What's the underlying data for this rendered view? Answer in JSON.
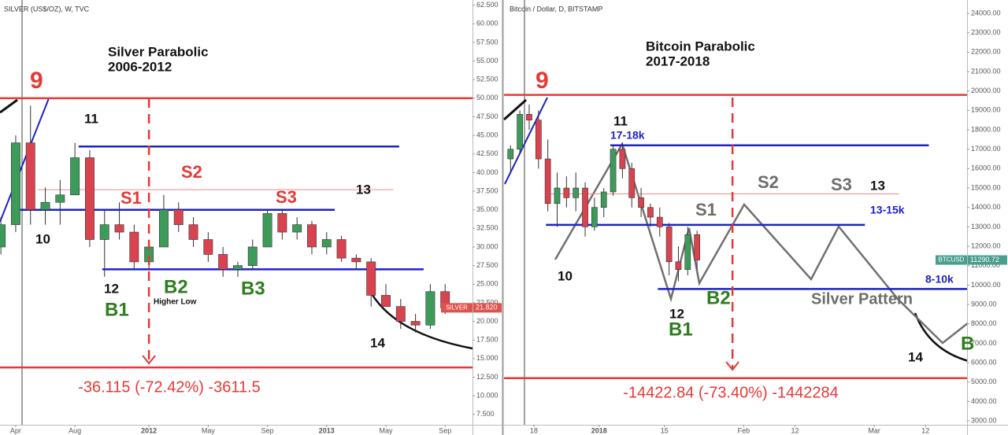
{
  "chart_data": [
    {
      "type": "candlestick",
      "header": "SILVER (US$/OZ), W, TVC",
      "title": "Silver Parabolic",
      "subtitle": "2006-2012",
      "x": [
        2,
        3,
        4,
        5,
        6,
        7,
        8,
        9,
        10,
        11,
        12,
        13,
        14,
        15,
        16,
        17,
        18,
        19,
        20,
        21,
        22,
        23,
        24,
        25,
        26,
        27,
        28,
        29,
        30,
        31,
        32
      ],
      "open": [
        30,
        33,
        44,
        35,
        36,
        37,
        42,
        31,
        33,
        32,
        28,
        30,
        35,
        33,
        31,
        29,
        27,
        27.5,
        30,
        34.5,
        32,
        33,
        30,
        31,
        28.5,
        28,
        23.5,
        22,
        20,
        19.5,
        24
      ],
      "high": [
        34,
        45,
        49,
        38,
        39,
        44,
        43,
        35,
        36,
        33,
        31,
        37,
        36,
        34,
        32,
        30,
        28,
        31,
        35,
        35,
        34,
        33.5,
        32,
        31.5,
        29,
        28.5,
        25,
        23,
        21,
        25,
        25
      ],
      "low": [
        29,
        32,
        33,
        33,
        33,
        37,
        30,
        26,
        31,
        27,
        27,
        30,
        32,
        30,
        28,
        26,
        26,
        27,
        30,
        31,
        31,
        29,
        29,
        28,
        27,
        22,
        22,
        19,
        18.5,
        19,
        21
      ],
      "close": [
        33,
        44,
        35,
        36,
        37,
        42,
        31,
        33,
        32,
        28,
        30,
        35,
        33,
        31,
        29,
        27,
        27.5,
        30,
        34.5,
        32,
        33,
        30,
        31,
        28.5,
        28,
        23.5,
        22,
        20,
        19.5,
        24,
        21.8
      ],
      "up_color": "#3d9b5a",
      "down_color": "#d9434f",
      "xlim": [
        1.94,
        33.85
      ],
      "ylim": [
        6.1,
        63.2
      ],
      "xticks": [
        {
          "value": 3,
          "label": "Apr"
        },
        {
          "value": 7,
          "label": "Aug"
        },
        {
          "value": 12,
          "label": "2012"
        },
        {
          "value": 16,
          "label": "May"
        },
        {
          "value": 20,
          "label": "Sep"
        },
        {
          "value": 24,
          "label": "2013"
        },
        {
          "value": 28,
          "label": "May"
        },
        {
          "value": 32,
          "label": "Sep"
        }
      ],
      "yticks": [
        {
          "value": 7.5,
          "label": "7.500"
        },
        {
          "value": 10,
          "label": "10.000"
        },
        {
          "value": 12.5,
          "label": "12.500"
        },
        {
          "value": 15,
          "label": "15.000"
        },
        {
          "value": 17.5,
          "label": "17.500"
        },
        {
          "value": 20,
          "label": "20.000"
        },
        {
          "value": 22.5,
          "label": "22.500"
        },
        {
          "value": 25,
          "label": "25.000"
        },
        {
          "value": 27.5,
          "label": "27.500"
        },
        {
          "value": 30,
          "label": "30.000"
        },
        {
          "value": 32.5,
          "label": "32.500"
        },
        {
          "value": 35,
          "label": "35.000"
        },
        {
          "value": 37.5,
          "label": "37.500"
        },
        {
          "value": 40,
          "label": "40.000"
        },
        {
          "value": 42.5,
          "label": "42.500"
        },
        {
          "value": 45,
          "label": "45.000"
        },
        {
          "value": 47.5,
          "label": "47.500"
        },
        {
          "value": 50,
          "label": "50.000"
        },
        {
          "value": 52.5,
          "label": "52.500"
        },
        {
          "value": 55,
          "label": "55.000"
        },
        {
          "value": 57.5,
          "label": "57.500"
        },
        {
          "value": 60,
          "label": "60.000"
        },
        {
          "value": 62.5,
          "label": "62.500"
        }
      ],
      "levels": [
        {
          "value": 50,
          "color": "#e53935"
        },
        {
          "value": 43.5,
          "color": "#1e22c8",
          "from": 7.25,
          "to": 28.9
        },
        {
          "value": 37.7,
          "color": "#f08a8a",
          "from": 4.5,
          "to": 28.5,
          "thin": true
        },
        {
          "value": 35,
          "color": "#1e22c8",
          "from": 3,
          "to": 24.55
        },
        {
          "value": 27,
          "color": "#1e22c8",
          "from": 8.85,
          "to": 30.55
        },
        {
          "value": 13.8,
          "color": "#e53935"
        }
      ],
      "vline": {
        "value": 12,
        "color": "#e53935"
      },
      "annotations": [
        {
          "text": "9",
          "color": "#e53935"
        },
        {
          "text": "11",
          "color": "#111"
        },
        {
          "text": "10",
          "color": "#111"
        },
        {
          "text": "12",
          "color": "#111"
        },
        {
          "text": "B1",
          "color": "#2e7d1e"
        },
        {
          "text": "S1",
          "color": "#e53935"
        },
        {
          "text": "S2",
          "color": "#e53935"
        },
        {
          "text": "B2",
          "color": "#2e7d1e"
        },
        {
          "text": "Higher Low",
          "color": "#111"
        },
        {
          "text": "S3",
          "color": "#e53935"
        },
        {
          "text": "B3",
          "color": "#2e7d1e"
        },
        {
          "text": "13",
          "color": "#111"
        },
        {
          "text": "14",
          "color": "#111"
        }
      ],
      "change_label": "-36.115 (-72.42%) -3611.5",
      "symbol": "SILVER",
      "last_price": {
        "value": 21.82,
        "label": "21.820"
      },
      "last_color": "#e0524d"
    },
    {
      "type": "candlestick",
      "header": "Bitcoin / Dollar, D, BITSTAMP",
      "title": "Bitcoin Parabolic",
      "subtitle": "2017-2018",
      "x": [
        12,
        14,
        16,
        18,
        20,
        22,
        24,
        26,
        28,
        30,
        32,
        34,
        36,
        38,
        40,
        42,
        44,
        46,
        48,
        50,
        52
      ],
      "open": [
        16500,
        17000,
        18800,
        18500,
        16500,
        14200,
        15000,
        14500,
        15000,
        13000,
        14000,
        14800,
        17000,
        16000,
        14500,
        14000,
        13500,
        13000,
        11200,
        10800,
        12600
      ],
      "high": [
        17200,
        19000,
        19300,
        19000,
        17500,
        15800,
        15600,
        15800,
        15300,
        14500,
        15000,
        17200,
        17300,
        16300,
        15000,
        14200,
        14000,
        13200,
        12000,
        13000,
        12800
      ],
      "low": [
        15800,
        16800,
        18000,
        16000,
        13800,
        13000,
        14000,
        13800,
        12500,
        12800,
        13500,
        14600,
        15500,
        14000,
        13500,
        13000,
        12500,
        10500,
        10200,
        10500,
        10800
      ],
      "close": [
        17000,
        18800,
        18500,
        16500,
        14200,
        15000,
        14500,
        15000,
        13000,
        14000,
        14800,
        17000,
        16000,
        14500,
        14000,
        13500,
        13000,
        11200,
        10800,
        12600,
        11290.72
      ],
      "up_color": "#3d9b5a",
      "down_color": "#d9434f",
      "xlim": [
        10.6,
        109.9
      ],
      "ylim": [
        2800,
        24690
      ],
      "xticks": [
        {
          "value": 17,
          "label": "18"
        },
        {
          "value": 31,
          "label": "2018"
        },
        {
          "value": 45,
          "label": "15"
        },
        {
          "value": 62,
          "label": "Feb"
        },
        {
          "value": 73,
          "label": "12"
        },
        {
          "value": 90,
          "label": "Mar"
        },
        {
          "value": 101,
          "label": "12"
        }
      ],
      "yticks": [
        {
          "value": 3000,
          "label": "3000.00"
        },
        {
          "value": 4000,
          "label": "4000.00"
        },
        {
          "value": 5000,
          "label": "5000.00"
        },
        {
          "value": 6000,
          "label": "6000.00"
        },
        {
          "value": 7000,
          "label": "7000.00"
        },
        {
          "value": 8000,
          "label": "8000.00"
        },
        {
          "value": 9000,
          "label": "9000.00"
        },
        {
          "value": 10000,
          "label": "10000.00"
        },
        {
          "value": 11000,
          "label": "11000.00"
        },
        {
          "value": 12000,
          "label": "12000.00"
        },
        {
          "value": 13000,
          "label": "13000.00"
        },
        {
          "value": 14000,
          "label": "14000.00"
        },
        {
          "value": 15000,
          "label": "15000.00"
        },
        {
          "value": 16000,
          "label": "16000.00"
        },
        {
          "value": 17000,
          "label": "17000.00"
        },
        {
          "value": 18000,
          "label": "18000.00"
        },
        {
          "value": 19000,
          "label": "19000.00"
        },
        {
          "value": 20000,
          "label": "20000.00"
        },
        {
          "value": 21000,
          "label": "21000.00"
        },
        {
          "value": 22000,
          "label": "22000.00"
        },
        {
          "value": 23000,
          "label": "23000.00"
        },
        {
          "value": 24000,
          "label": "24000.00"
        }
      ],
      "levels": [
        {
          "value": 19800,
          "color": "#e53935"
        },
        {
          "value": 17200,
          "color": "#1e22c8",
          "from": 33.4,
          "to": 101.7
        },
        {
          "value": 14700,
          "color": "#f08a8a",
          "from": 20.7,
          "to": 95.3,
          "thin": true
        },
        {
          "value": 13100,
          "color": "#1e22c8",
          "from": 19.6,
          "to": 88
        },
        {
          "value": 9800,
          "color": "#1e22c8",
          "from": 43.6,
          "to": 109.9
        },
        {
          "value": 5200,
          "color": "#e53935"
        }
      ],
      "vline": {
        "value": 59.6,
        "color": "#e53935"
      },
      "annotations": [
        {
          "text": "9",
          "color": "#e53935"
        },
        {
          "text": "17-18k",
          "color": "#1e22c8"
        },
        {
          "text": "11",
          "color": "#111"
        },
        {
          "text": "10",
          "color": "#111"
        },
        {
          "text": "S1",
          "color": "#6d6d6d"
        },
        {
          "text": "S2",
          "color": "#6d6d6d"
        },
        {
          "text": "S3",
          "color": "#6d6d6d"
        },
        {
          "text": "13",
          "color": "#111"
        },
        {
          "text": "13-15k",
          "color": "#1e22c8"
        },
        {
          "text": "8-10k",
          "color": "#1e22c8"
        },
        {
          "text": "Silver Pattern",
          "color": "#6d6d6d"
        },
        {
          "text": "B2",
          "color": "#2e7d1e"
        },
        {
          "text": "12",
          "color": "#111"
        },
        {
          "text": "B1",
          "color": "#2e7d1e"
        },
        {
          "text": "14",
          "color": "#111"
        },
        {
          "text": "B",
          "color": "#2e7d1e"
        }
      ],
      "change_label": "-14422.84 (-73.40%) -1442284",
      "symbol": "BTCUSD",
      "last_price": {
        "value": 11290.72,
        "label": "11290.72"
      },
      "last_color": "#4a9e8e"
    }
  ]
}
